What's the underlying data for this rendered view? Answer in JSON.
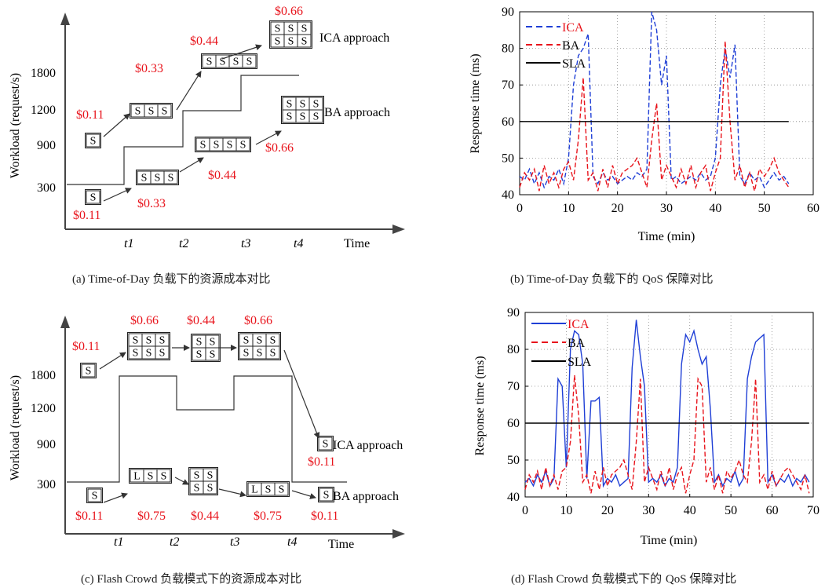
{
  "captions": {
    "a_prefix": "(a) Time-of-Day ",
    "a_cn": "负载下的资源成本对比",
    "b_prefix": "(b) Time-of-Day ",
    "b_cn": "负载下的 ",
    "b_qos": "QoS ",
    "b_cn2": "保障对比",
    "c_prefix": "(c) Flash Crowd ",
    "c_cn": "负载模式下的资源成本对比",
    "d_prefix": "(d) Flash Crowd ",
    "d_cn": "负载模式下的 ",
    "d_qos": "QoS ",
    "d_cn2": "保障对比"
  },
  "colors": {
    "ica": "#1f3fd6",
    "ba": "#e8141c",
    "sla": "#000000",
    "price": "#e8141c"
  },
  "chart_data": [
    {
      "panel": "a",
      "type": "diagram",
      "ylabel": "Workload (request/s)",
      "xlabel": "Time",
      "yticks": [
        "300",
        "900",
        "1200",
        "1800"
      ],
      "xticks": [
        "t1",
        "t2",
        "t3",
        "t4"
      ],
      "workload_step": [
        300,
        900,
        1200,
        1800
      ],
      "ica_label": "ICA approach",
      "ba_label": "BA approach",
      "ica_prices": [
        "$0.11",
        "$0.33",
        "$0.44",
        "$0.66"
      ],
      "ba_prices": [
        "$0.11",
        "$0.33",
        "$0.44",
        "$0.66"
      ],
      "box_letter": "S"
    },
    {
      "panel": "b",
      "type": "line",
      "xlabel": "Time (min)",
      "ylabel": "Response time (ms)",
      "xlim": [
        0,
        60
      ],
      "ylim": [
        40,
        90
      ],
      "xticks": [
        0,
        10,
        20,
        30,
        40,
        50,
        60
      ],
      "yticks": [
        40,
        50,
        60,
        70,
        80,
        90
      ],
      "grid": true,
      "legend": "top-left",
      "series": [
        {
          "name": "ICA",
          "style": "dashed",
          "color": "#1f3fd6",
          "x": [
            0,
            1,
            2,
            3,
            4,
            5,
            6,
            7,
            8,
            9,
            10,
            11,
            12,
            13,
            14,
            15,
            16,
            17,
            18,
            19,
            20,
            21,
            22,
            23,
            24,
            25,
            26,
            27,
            28,
            29,
            30,
            31,
            32,
            33,
            34,
            35,
            36,
            37,
            38,
            39,
            40,
            41,
            42,
            43,
            44,
            45,
            46,
            47,
            48,
            49,
            50,
            51,
            52,
            53,
            54,
            55
          ],
          "y": [
            45,
            44,
            47,
            43,
            46,
            42,
            45,
            44,
            47,
            43,
            50,
            70,
            78,
            80,
            84,
            45,
            43,
            46,
            44,
            45,
            43,
            44,
            45,
            44,
            46,
            45,
            47,
            90,
            85,
            70,
            78,
            44,
            45,
            43,
            44,
            45,
            44,
            46,
            44,
            45,
            50,
            70,
            80,
            72,
            81,
            45,
            43,
            46,
            44,
            45,
            42,
            44,
            46,
            44,
            45,
            43
          ]
        },
        {
          "name": "BA",
          "style": "dashed",
          "color": "#e8141c",
          "x": [
            0,
            1,
            2,
            3,
            4,
            5,
            6,
            7,
            8,
            9,
            10,
            11,
            12,
            13,
            14,
            15,
            16,
            17,
            18,
            19,
            20,
            21,
            22,
            23,
            24,
            25,
            26,
            27,
            28,
            29,
            30,
            31,
            32,
            33,
            34,
            35,
            36,
            37,
            38,
            39,
            40,
            41,
            42,
            43,
            44,
            45,
            46,
            47,
            48,
            49,
            50,
            51,
            52,
            53,
            54,
            55
          ],
          "y": [
            42,
            46,
            44,
            47,
            41,
            48,
            43,
            46,
            42,
            47,
            49,
            44,
            55,
            72,
            44,
            46,
            41,
            47,
            42,
            48,
            43,
            46,
            47,
            48,
            50,
            46,
            42,
            55,
            65,
            44,
            48,
            45,
            42,
            47,
            43,
            48,
            42,
            46,
            48,
            41,
            46,
            50,
            82,
            60,
            44,
            48,
            42,
            46,
            41,
            47,
            45,
            47,
            50,
            46,
            44,
            42
          ]
        },
        {
          "name": "SLA",
          "style": "solid",
          "color": "#000000",
          "x": [
            0,
            55
          ],
          "y": [
            60,
            60
          ]
        }
      ]
    },
    {
      "panel": "c",
      "type": "diagram",
      "ylabel": "Workload (request/s)",
      "xlabel": "Time",
      "yticks": [
        "300",
        "900",
        "1200",
        "1800"
      ],
      "xticks": [
        "t1",
        "t2",
        "t3",
        "t4"
      ],
      "workload_step": [
        300,
        1800,
        1200,
        1800,
        300
      ],
      "ica_label": "ICA approach",
      "ba_label": "BA approach",
      "ica_prices": [
        "$0.11",
        "$0.66",
        "$0.44",
        "$0.66",
        "$0.11"
      ],
      "ba_prices": [
        "$0.11",
        "$0.75",
        "$0.44",
        "$0.75",
        "$0.11"
      ],
      "box_letters": [
        "S",
        "L"
      ]
    },
    {
      "panel": "d",
      "type": "line",
      "xlabel": "Time (min)",
      "ylabel": "Response time (ms)",
      "xlim": [
        0,
        70
      ],
      "ylim": [
        40,
        90
      ],
      "xticks": [
        0,
        10,
        20,
        30,
        40,
        50,
        60,
        70
      ],
      "yticks": [
        40,
        50,
        60,
        70,
        80,
        90
      ],
      "grid": true,
      "legend": "top-left",
      "series": [
        {
          "name": "ICA",
          "style": "solid",
          "color": "#1f3fd6",
          "x": [
            0,
            1,
            2,
            3,
            4,
            5,
            6,
            7,
            8,
            9,
            10,
            11,
            12,
            13,
            14,
            15,
            16,
            17,
            18,
            19,
            20,
            21,
            22,
            23,
            24,
            25,
            26,
            27,
            28,
            29,
            30,
            31,
            32,
            33,
            34,
            35,
            36,
            37,
            38,
            39,
            40,
            41,
            42,
            43,
            44,
            45,
            46,
            47,
            48,
            49,
            50,
            51,
            52,
            53,
            54,
            55,
            56,
            57,
            58,
            59,
            60,
            61,
            62,
            63,
            64,
            65,
            66,
            67,
            68,
            69
          ],
          "y": [
            44,
            45,
            43,
            46,
            44,
            47,
            43,
            45,
            72,
            70,
            48,
            80,
            85,
            84,
            76,
            45,
            66,
            66,
            67,
            43,
            45,
            44,
            46,
            43,
            44,
            45,
            75,
            88,
            78,
            70,
            44,
            45,
            44,
            46,
            43,
            45,
            44,
            48,
            76,
            84,
            82,
            85,
            80,
            76,
            78,
            64,
            44,
            46,
            43,
            45,
            44,
            47,
            43,
            45,
            72,
            78,
            82,
            83,
            84,
            44,
            46,
            43,
            45,
            44,
            46,
            43,
            45,
            44,
            46,
            44
          ]
        },
        {
          "name": "BA",
          "style": "dashed",
          "color": "#e8141c",
          "x": [
            0,
            1,
            2,
            3,
            4,
            5,
            6,
            7,
            8,
            9,
            10,
            11,
            12,
            13,
            14,
            15,
            16,
            17,
            18,
            19,
            20,
            21,
            22,
            23,
            24,
            25,
            26,
            27,
            28,
            29,
            30,
            31,
            32,
            33,
            34,
            35,
            36,
            37,
            38,
            39,
            40,
            41,
            42,
            43,
            44,
            45,
            46,
            47,
            48,
            49,
            50,
            51,
            52,
            53,
            54,
            55,
            56,
            57,
            58,
            59,
            60,
            61,
            62,
            63,
            64,
            65,
            66,
            67,
            68,
            69
          ],
          "y": [
            42,
            46,
            44,
            47,
            42,
            48,
            43,
            46,
            42,
            47,
            48,
            55,
            73,
            62,
            44,
            46,
            41,
            47,
            42,
            48,
            43,
            46,
            47,
            48,
            50,
            46,
            42,
            55,
            72,
            44,
            48,
            45,
            42,
            47,
            43,
            48,
            42,
            46,
            48,
            41,
            46,
            50,
            72,
            70,
            44,
            48,
            42,
            46,
            41,
            47,
            45,
            47,
            50,
            46,
            44,
            55,
            72,
            44,
            46,
            42,
            47,
            43,
            45,
            47,
            48,
            46,
            44,
            42,
            46,
            41
          ]
        },
        {
          "name": "SLA",
          "style": "solid",
          "color": "#000000",
          "x": [
            0,
            69
          ],
          "y": [
            60,
            60
          ]
        }
      ]
    }
  ]
}
